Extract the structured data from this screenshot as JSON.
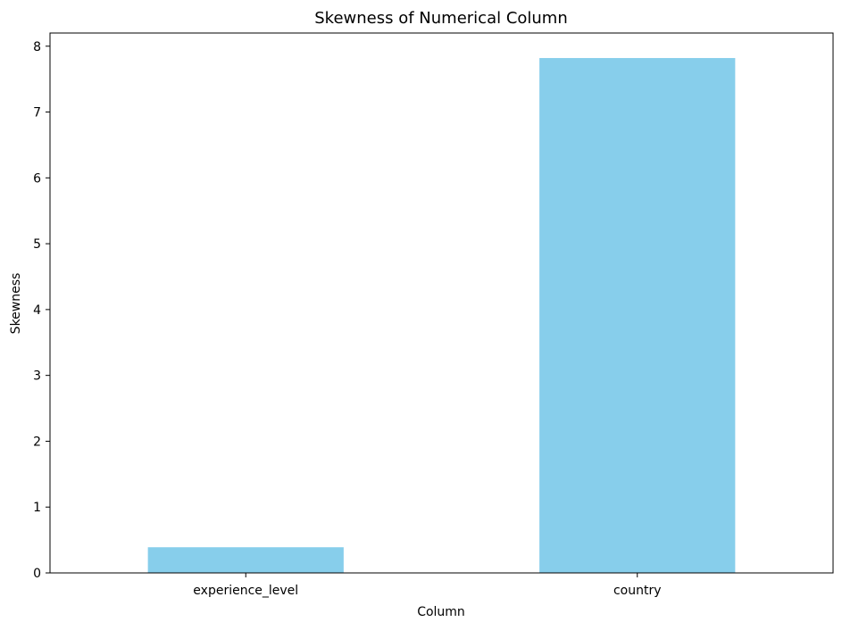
{
  "chart_data": {
    "type": "bar",
    "title": "Skewness of Numerical Column",
    "xlabel": "Column",
    "ylabel": "Skewness",
    "categories": [
      "experience_level",
      "country"
    ],
    "values": [
      0.39,
      7.82
    ],
    "ylim": [
      0,
      8.2
    ],
    "yticks": [
      0,
      1,
      2,
      3,
      4,
      5,
      6,
      7,
      8
    ],
    "bar_color": "#87ceeb",
    "grid": false,
    "legend": "none"
  }
}
